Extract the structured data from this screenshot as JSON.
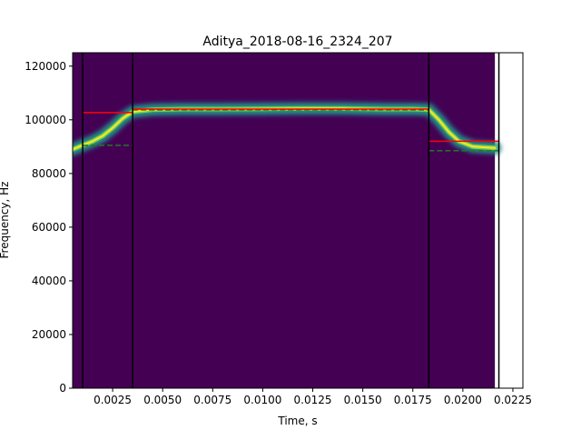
{
  "chart_data": {
    "type": "heatmap",
    "title": "Aditya_2018-08-16_2324_207",
    "xlabel": "Time, s",
    "ylabel": "Frequency, Hz",
    "xlim": [
      0.0005,
      0.023
    ],
    "ylim": [
      0,
      125000
    ],
    "x_ticks": [
      0.0025,
      0.005,
      0.0075,
      0.01,
      0.0125,
      0.015,
      0.0175,
      0.02,
      0.0225
    ],
    "x_tick_labels": [
      "0.0025",
      "0.0050",
      "0.0075",
      "0.0100",
      "0.0125",
      "0.0150",
      "0.0175",
      "0.0200",
      "0.0225"
    ],
    "y_ticks": [
      0,
      20000,
      40000,
      60000,
      80000,
      100000,
      120000
    ],
    "y_tick_labels": [
      "0",
      "20000",
      "40000",
      "60000",
      "80000",
      "100000",
      "120000"
    ],
    "spectrogram_extent": {
      "x": [
        0.0005,
        0.0216
      ],
      "y": [
        0,
        125000
      ]
    },
    "background_color": "#440154",
    "colormap": "viridis",
    "spectral_track": {
      "x": [
        0.0005,
        0.001,
        0.0015,
        0.002,
        0.0025,
        0.003,
        0.0035,
        0.0045,
        0.006,
        0.008,
        0.01,
        0.012,
        0.014,
        0.016,
        0.0175,
        0.0183,
        0.0188,
        0.0193,
        0.0198,
        0.0205,
        0.0216
      ],
      "y": [
        89000,
        90500,
        92000,
        94000,
        97000,
        100500,
        103000,
        103800,
        104000,
        104000,
        104100,
        104200,
        104200,
        104000,
        104000,
        103800,
        100000,
        95500,
        92000,
        90000,
        89500
      ]
    },
    "vertical_lines": [
      0.001,
      0.0035,
      0.0183,
      0.0218
    ],
    "red_segments": [
      {
        "x": [
          0.001,
          0.0035
        ],
        "y": 102700
      },
      {
        "x": [
          0.0035,
          0.0183
        ],
        "y": 104000
      },
      {
        "x": [
          0.0183,
          0.0218
        ],
        "y": 92000
      }
    ],
    "dashed_segments": [
      {
        "x": [
          0.001,
          0.0035
        ],
        "y": 90500
      },
      {
        "x": [
          0.0035,
          0.0183
        ],
        "y": 103700
      },
      {
        "x": [
          0.0183,
          0.0218
        ],
        "y": 88500
      }
    ],
    "colors": {
      "red_line": "#ff0000",
      "dashed_line": "#1f7a1f",
      "vline": "#000000"
    }
  }
}
